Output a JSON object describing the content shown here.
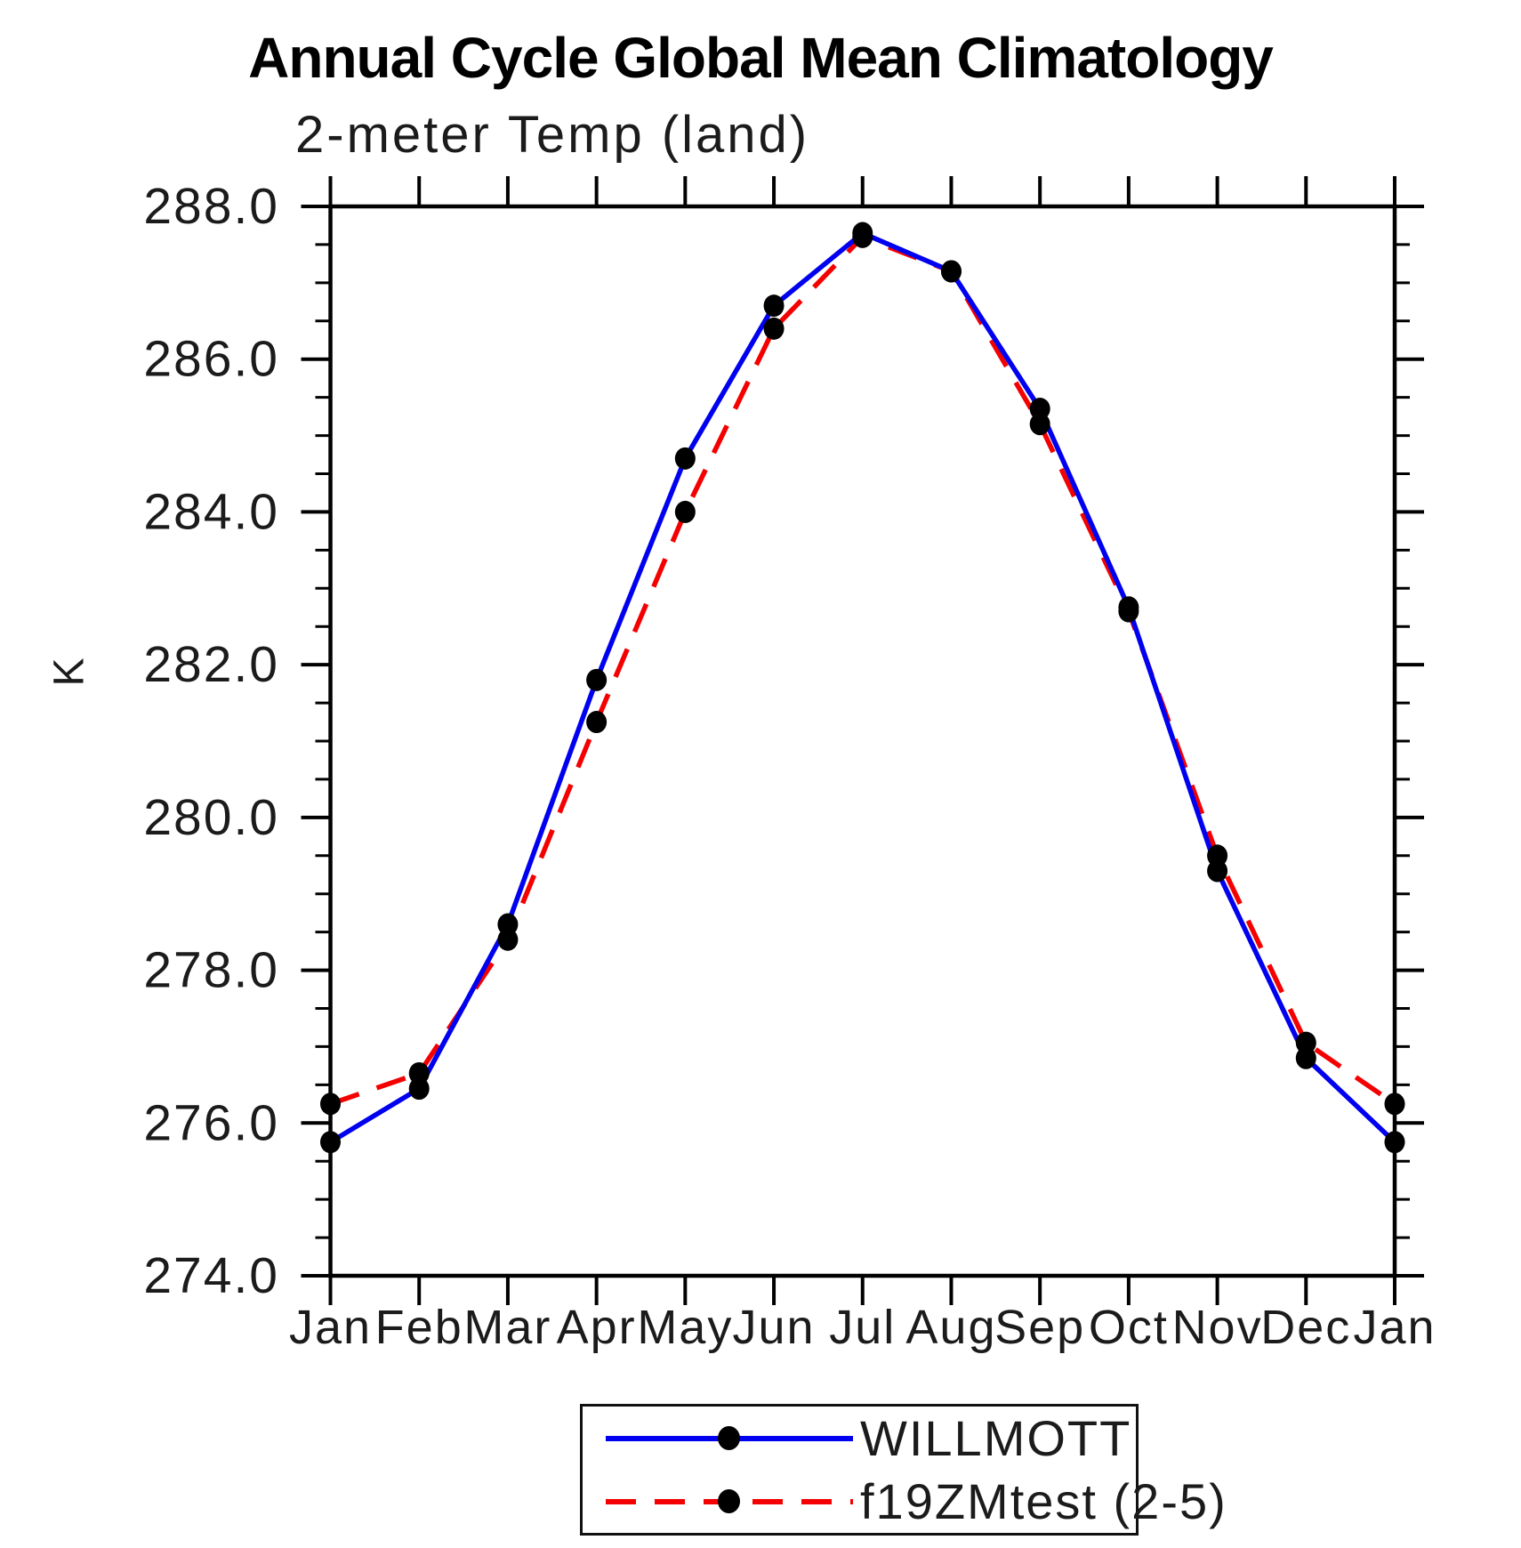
{
  "chart_data": {
    "type": "line",
    "title": "Annual Cycle Global Mean Climatology",
    "subtitle": "2-meter Temp (land)",
    "ylabel": "K",
    "xlabel": "",
    "categories": [
      "Jan",
      "Feb",
      "Mar",
      "Apr",
      "May",
      "Jun",
      "Jul",
      "Aug",
      "Sep",
      "Oct",
      "Nov",
      "Dec",
      "Jan"
    ],
    "ylim": [
      274.0,
      288.0
    ],
    "ytick_major_step": 2.0,
    "ytick_minor_step": 0.5,
    "ytick_labels": [
      "274.0",
      "276.0",
      "278.0",
      "280.0",
      "282.0",
      "284.0",
      "286.0",
      "288.0"
    ],
    "grid": false,
    "legend_position": "bottom-center",
    "axis_color": "#000000",
    "marker_color": "#000000",
    "series": [
      {
        "name": "WILLMOTT",
        "color": "#0000f0",
        "style": "solid",
        "marker": "filled-circle",
        "values": [
          275.75,
          276.45,
          278.6,
          281.8,
          284.7,
          286.7,
          287.65,
          287.15,
          285.35,
          282.75,
          279.3,
          276.85,
          275.75
        ]
      },
      {
        "name": "f19ZMtest (2-5)",
        "color": "#f40000",
        "style": "dashed",
        "marker": "filled-circle",
        "values": [
          276.25,
          276.65,
          278.4,
          281.25,
          284.0,
          286.4,
          287.6,
          287.15,
          285.15,
          282.7,
          279.5,
          277.05,
          276.25
        ]
      }
    ]
  }
}
